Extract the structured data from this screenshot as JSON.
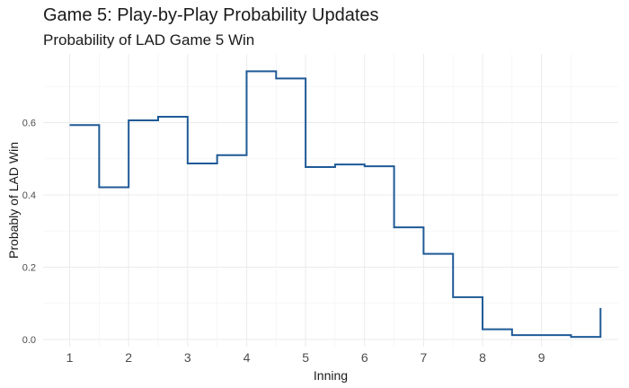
{
  "chart_data": {
    "type": "line",
    "title": "Game 5: Play-by-Play Probability Updates",
    "subtitle": "Probability of LAD Game 5 Win",
    "xlabel": "Inning",
    "ylabel": "Probably of LAD Win",
    "xlim": [
      0.55,
      10.3
    ],
    "ylim": [
      -0.02,
      0.79
    ],
    "x_ticks": [
      1,
      2,
      3,
      4,
      5,
      6,
      7,
      8,
      9
    ],
    "y_ticks": [
      0.0,
      0.2,
      0.4,
      0.6
    ],
    "y_tick_labels": [
      "0.0",
      "0.2",
      "0.4",
      "0.6"
    ],
    "grid": true,
    "line_color": "#1f5a96",
    "step_points": [
      {
        "x": 1.0,
        "y": 0.593
      },
      {
        "x": 1.5,
        "y": 0.421
      },
      {
        "x": 2.0,
        "y": 0.606
      },
      {
        "x": 2.5,
        "y": 0.616
      },
      {
        "x": 3.0,
        "y": 0.487
      },
      {
        "x": 3.5,
        "y": 0.51
      },
      {
        "x": 4.0,
        "y": 0.742
      },
      {
        "x": 4.5,
        "y": 0.722
      },
      {
        "x": 5.0,
        "y": 0.477
      },
      {
        "x": 5.5,
        "y": 0.484
      },
      {
        "x": 6.0,
        "y": 0.479
      },
      {
        "x": 6.5,
        "y": 0.31
      },
      {
        "x": 7.0,
        "y": 0.237
      },
      {
        "x": 7.5,
        "y": 0.117
      },
      {
        "x": 8.0,
        "y": 0.028
      },
      {
        "x": 8.5,
        "y": 0.012
      },
      {
        "x": 9.5,
        "y": 0.007
      },
      {
        "x": 10.0,
        "y": 0.087
      }
    ]
  }
}
